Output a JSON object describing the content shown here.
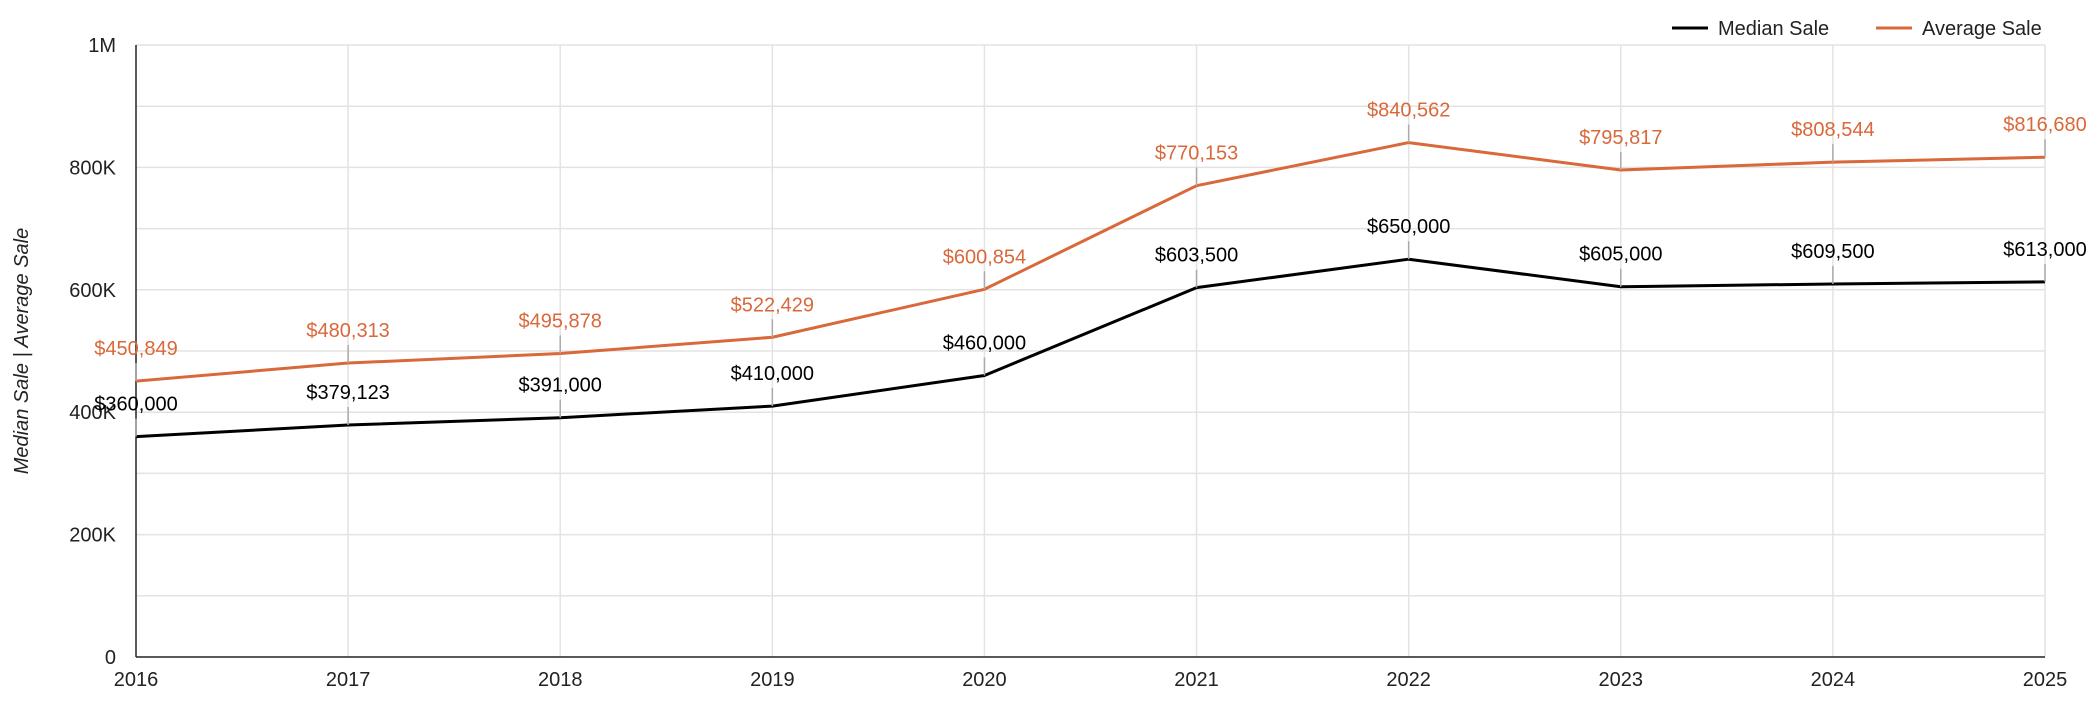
{
  "chart_data": {
    "type": "line",
    "title": "",
    "xlabel": "",
    "ylabel": "Median Sale | Average Sale",
    "x": [
      "2016",
      "2017",
      "2018",
      "2019",
      "2020",
      "2021",
      "2022",
      "2023",
      "2024",
      "2025"
    ],
    "ylim": [
      0,
      1000000
    ],
    "yticks": [
      {
        "value": 0,
        "label": "0"
      },
      {
        "value": 200000,
        "label": "200K"
      },
      {
        "value": 400000,
        "label": "400K"
      },
      {
        "value": 600000,
        "label": "600K"
      },
      {
        "value": 800000,
        "label": "800K"
      },
      {
        "value": 1000000,
        "label": "1M"
      }
    ],
    "minor_grid_step": 100000,
    "grid": true,
    "legend_position": "top-right",
    "series": [
      {
        "name": "Median Sale",
        "color": "#000000",
        "values": [
          360000,
          379123,
          391000,
          410000,
          460000,
          603500,
          650000,
          605000,
          609500,
          613000
        ],
        "labels": [
          "$360,000",
          "$379,123",
          "$391,000",
          "$410,000",
          "$460,000",
          "$603,500",
          "$650,000",
          "$605,000",
          "$609,500",
          "$613,000"
        ]
      },
      {
        "name": "Average Sale",
        "color": "#d9683a",
        "values": [
          450849,
          480313,
          495878,
          522429,
          600854,
          770153,
          840562,
          795817,
          808544,
          816680
        ],
        "labels": [
          "$450,849",
          "$480,313",
          "$495,878",
          "$522,429",
          "$600,854",
          "$770,153",
          "$840,562",
          "$795,817",
          "$808,544",
          "$816,680"
        ]
      }
    ]
  }
}
